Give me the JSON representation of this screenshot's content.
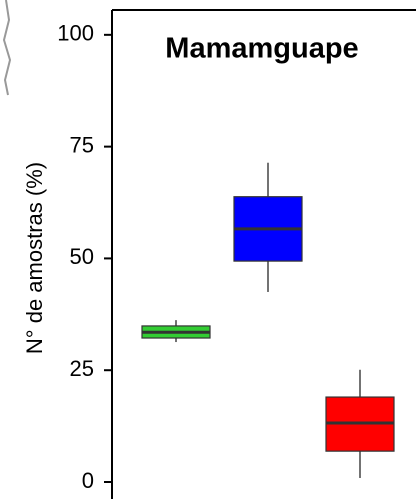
{
  "chart_data": {
    "type": "box",
    "title": "Mamamguape",
    "y_label": "N° de amostras (%)",
    "categories": [
      null,
      null,
      null
    ],
    "boxes": [
      {
        "color": "#33cc33",
        "min": 31.3,
        "q1": 32.2,
        "median": 33.5,
        "q3": 34.9,
        "max": 36.2
      },
      {
        "color": "#0000ff",
        "min": 42.5,
        "q1": 49.4,
        "median": 56.6,
        "q3": 63.8,
        "max": 71.4
      },
      {
        "color": "#ff0000",
        "min": 0.9,
        "q1": 6.9,
        "median": 13.2,
        "q3": 19.0,
        "max": 25.1
      }
    ],
    "ylim": [
      -3.8,
      106
    ],
    "yticks": [
      0,
      25,
      50,
      75,
      100
    ]
  }
}
